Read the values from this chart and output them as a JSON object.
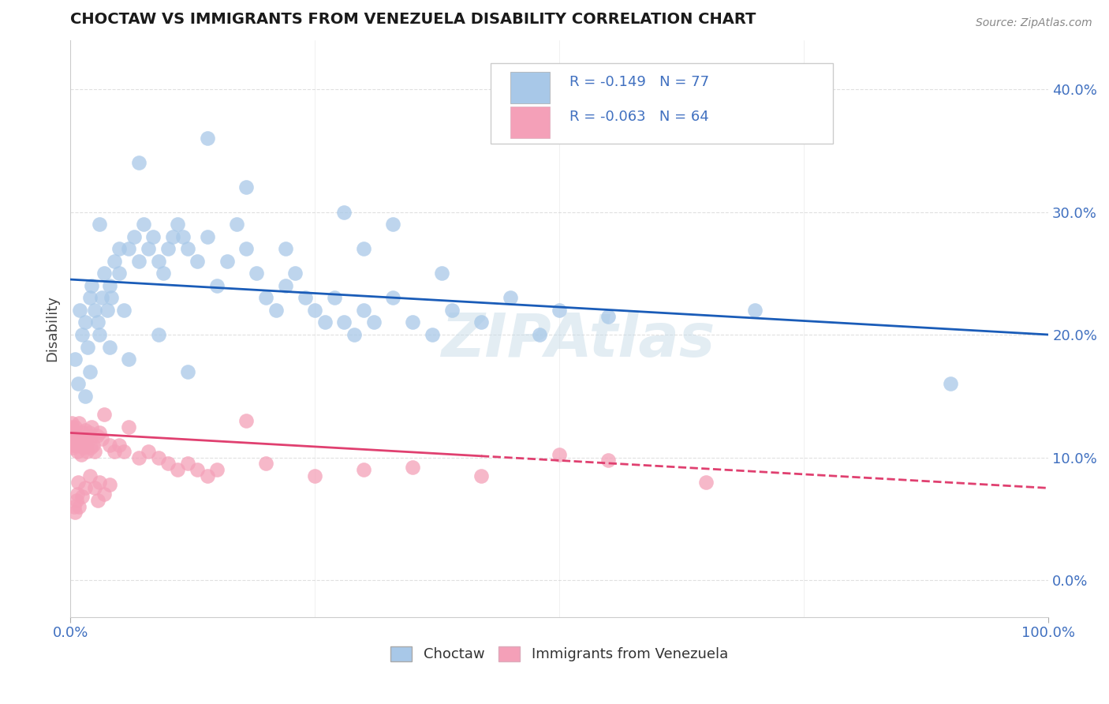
{
  "title": "CHOCTAW VS IMMIGRANTS FROM VENEZUELA DISABILITY CORRELATION CHART",
  "source": "Source: ZipAtlas.com",
  "ylabel": "Disability",
  "xlim": [
    0,
    100
  ],
  "ylim": [
    -3,
    44
  ],
  "ytick_vals": [
    0,
    10,
    20,
    30,
    40
  ],
  "ytick_labels": [
    "0.0%",
    "10.0%",
    "20.0%",
    "30.0%",
    "40.0%"
  ],
  "choctaw_color": "#a8c8e8",
  "choctaw_edge": "#7aaad0",
  "venezuela_color": "#f4a0b8",
  "venezuela_edge": "#e07090",
  "choctaw_line_color": "#1a5cb8",
  "venezuela_line_color": "#e04070",
  "background_color": "#ffffff",
  "grid_color": "#cccccc",
  "watermark": "ZIPAtlas",
  "watermark_color": "#c8dce8",
  "tick_color": "#4070c0",
  "title_color": "#1a1a1a",
  "source_color": "#888888",
  "ylabel_color": "#444444",
  "legend_R1": "R = -0.149",
  "legend_N1": "N = 77",
  "legend_R2": "R = -0.063",
  "legend_N2": "N = 64",
  "choctaw_R": -0.149,
  "choctaw_N": 77,
  "venezuela_R": -0.063,
  "venezuela_N": 64,
  "choctaw_line_start_y": 24.5,
  "choctaw_line_end_y": 20.0,
  "venezuela_line_start_y": 12.0,
  "venezuela_line_end_y": 7.5,
  "venezuela_solid_end_x": 42
}
